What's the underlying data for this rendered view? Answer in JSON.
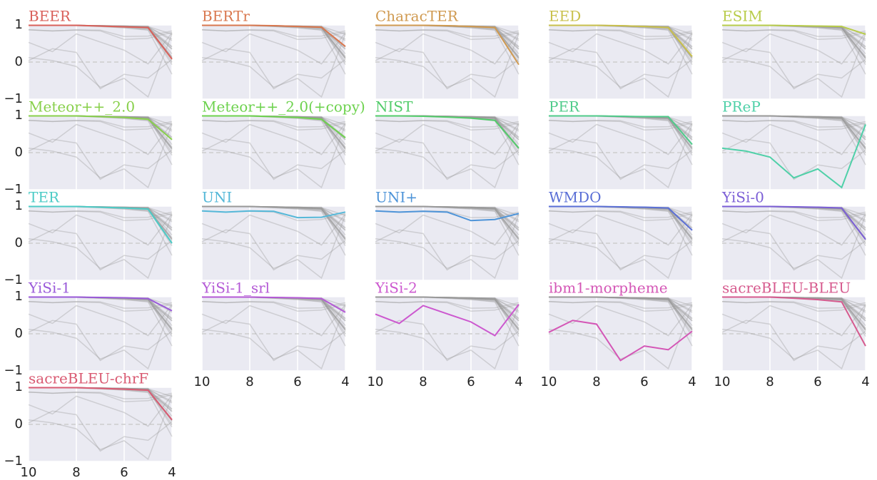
{
  "chart_data": {
    "type": "line",
    "x": [
      10,
      9,
      8,
      7,
      6,
      5,
      4
    ],
    "xlim": [
      10,
      4
    ],
    "xticks": [
      10,
      8,
      6,
      4
    ],
    "ylim": [
      -1,
      1
    ],
    "yticks": [
      {
        "value": -1,
        "label": "−1"
      },
      0,
      1
    ],
    "grid": true,
    "series": [
      {
        "name": "BEER",
        "color": "#d9605a",
        "values": [
          0.99,
          0.99,
          0.99,
          0.97,
          0.95,
          0.93,
          0.08
        ]
      },
      {
        "name": "BERTr",
        "color": "#d9774e",
        "values": [
          0.99,
          0.99,
          0.99,
          0.98,
          0.96,
          0.94,
          0.42
        ]
      },
      {
        "name": "CharacTER",
        "color": "#d09a50",
        "values": [
          0.99,
          0.99,
          0.99,
          0.98,
          0.96,
          0.93,
          -0.07
        ]
      },
      {
        "name": "EED",
        "color": "#c9c04c",
        "values": [
          0.99,
          0.99,
          0.99,
          0.98,
          0.96,
          0.93,
          0.15
        ]
      },
      {
        "name": "ESIM",
        "color": "#b8cc4a",
        "values": [
          0.99,
          0.99,
          0.99,
          0.98,
          0.97,
          0.96,
          0.75
        ]
      },
      {
        "name": "Meteor++_2.0",
        "color": "#88d04b",
        "values": [
          0.99,
          0.99,
          0.99,
          0.97,
          0.95,
          0.9,
          0.35
        ]
      },
      {
        "name": "Meteor++_2.0(+copy)",
        "color": "#6dd24e",
        "values": [
          0.99,
          0.99,
          0.99,
          0.97,
          0.95,
          0.9,
          0.4
        ]
      },
      {
        "name": "NIST",
        "color": "#52cc6a",
        "values": [
          0.99,
          0.99,
          0.98,
          0.96,
          0.93,
          0.87,
          0.12
        ]
      },
      {
        "name": "PER",
        "color": "#4fcb8a",
        "values": [
          0.99,
          0.99,
          0.99,
          0.98,
          0.97,
          0.97,
          0.22
        ]
      },
      {
        "name": "PReP",
        "color": "#4fd0a8",
        "values": [
          0.12,
          0.04,
          -0.12,
          -0.68,
          -0.44,
          -0.94,
          0.76
        ]
      },
      {
        "name": "TER",
        "color": "#4ccbc6",
        "values": [
          0.99,
          0.99,
          0.99,
          0.97,
          0.95,
          0.92,
          0.0
        ]
      },
      {
        "name": "UNI",
        "color": "#55b8d8",
        "values": [
          0.87,
          0.84,
          0.87,
          0.86,
          0.69,
          0.7,
          0.84
        ]
      },
      {
        "name": "UNI+",
        "color": "#4e94d8",
        "values": [
          0.87,
          0.84,
          0.86,
          0.84,
          0.61,
          0.64,
          0.8
        ]
      },
      {
        "name": "WMDO",
        "color": "#5a6fd6",
        "values": [
          0.99,
          0.99,
          0.99,
          0.98,
          0.97,
          0.95,
          0.35
        ]
      },
      {
        "name": "YiSi-0",
        "color": "#7b5ed6",
        "values": [
          0.99,
          0.99,
          0.99,
          0.98,
          0.97,
          0.95,
          0.1
        ]
      },
      {
        "name": "YiSi-1",
        "color": "#9a5ad9",
        "values": [
          0.99,
          0.99,
          0.99,
          0.98,
          0.97,
          0.95,
          0.62
        ]
      },
      {
        "name": "YiSi-1_srl",
        "color": "#b45ad6",
        "values": [
          0.99,
          0.99,
          0.99,
          0.98,
          0.97,
          0.95,
          0.58
        ]
      },
      {
        "name": "YiSi-2",
        "color": "#cc58cf",
        "values": [
          0.53,
          0.28,
          0.76,
          0.54,
          0.32,
          -0.05,
          0.79
        ]
      },
      {
        "name": "ibm1-morpheme",
        "color": "#d456b6",
        "values": [
          0.04,
          0.36,
          0.26,
          -0.72,
          -0.33,
          -0.43,
          0.07
        ]
      },
      {
        "name": "sacreBLEU-BLEU",
        "color": "#d65a8e",
        "values": [
          0.99,
          0.99,
          0.99,
          0.96,
          0.92,
          0.86,
          -0.33
        ]
      },
      {
        "name": "sacreBLEU-chrF",
        "color": "#d95a72",
        "values": [
          0.99,
          0.99,
          0.99,
          0.97,
          0.95,
          0.92,
          0.12
        ]
      }
    ]
  }
}
